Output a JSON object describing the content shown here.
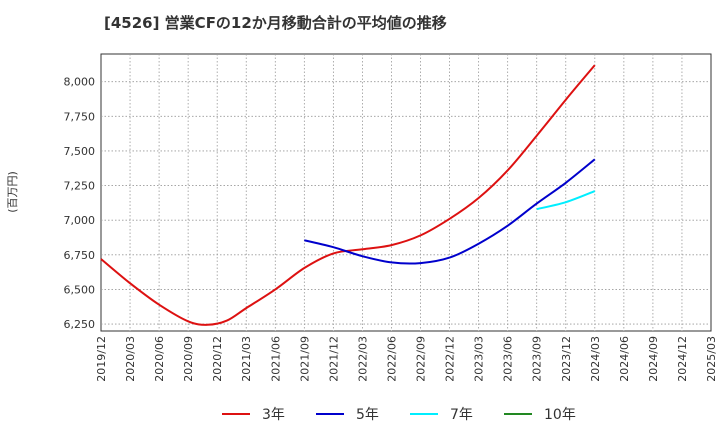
{
  "chart_data": {
    "type": "line",
    "title": "[4526]  営業CFの12か月移動合計の平均値の推移",
    "ylabel": "(百万円)",
    "xlabel": "",
    "ylim": [
      6200,
      8200
    ],
    "y_ticks": [
      6250,
      6500,
      6750,
      7000,
      7250,
      7500,
      7750,
      8000
    ],
    "y_tick_labels": [
      "6,250",
      "6,500",
      "6,750",
      "7,000",
      "7,250",
      "7,500",
      "7,750",
      "8,000"
    ],
    "x_tick_labels": [
      "2019/12",
      "2020/03",
      "2020/06",
      "2020/09",
      "2020/12",
      "2021/03",
      "2021/06",
      "2021/09",
      "2021/12",
      "2022/03",
      "2022/06",
      "2022/09",
      "2022/12",
      "2023/03",
      "2023/06",
      "2023/09",
      "2023/12",
      "2024/03",
      "2024/06",
      "2024/09",
      "2024/12",
      "2025/03"
    ],
    "grid": true,
    "legend_position": "bottom",
    "series": [
      {
        "name": "3年",
        "color": "#dd1111",
        "x": [
          "2019/12",
          "2020/03",
          "2020/06",
          "2020/09",
          "2020/11",
          "2021/01",
          "2021/03",
          "2021/06",
          "2021/09",
          "2021/12",
          "2022/03",
          "2022/06",
          "2022/09",
          "2022/12",
          "2023/03",
          "2023/06",
          "2023/09",
          "2023/12",
          "2024/03"
        ],
        "values": [
          6720,
          6545,
          6390,
          6270,
          6245,
          6275,
          6365,
          6500,
          6655,
          6760,
          6790,
          6820,
          6890,
          7010,
          7160,
          7360,
          7610,
          7870,
          8120
        ]
      },
      {
        "name": "5年",
        "color": "#0000cc",
        "x": [
          "2021/09",
          "2021/12",
          "2022/03",
          "2022/06",
          "2022/09",
          "2022/12",
          "2023/03",
          "2023/06",
          "2023/09",
          "2023/12",
          "2024/03"
        ],
        "values": [
          6855,
          6805,
          6740,
          6695,
          6690,
          6730,
          6830,
          6960,
          7120,
          7270,
          7440
        ]
      },
      {
        "name": "7年",
        "color": "#00eeff",
        "x": [
          "2023/09",
          "2023/12",
          "2024/03"
        ],
        "values": [
          7080,
          7130,
          7210
        ]
      },
      {
        "name": "10年",
        "color": "#228822",
        "x": [],
        "values": []
      }
    ]
  }
}
